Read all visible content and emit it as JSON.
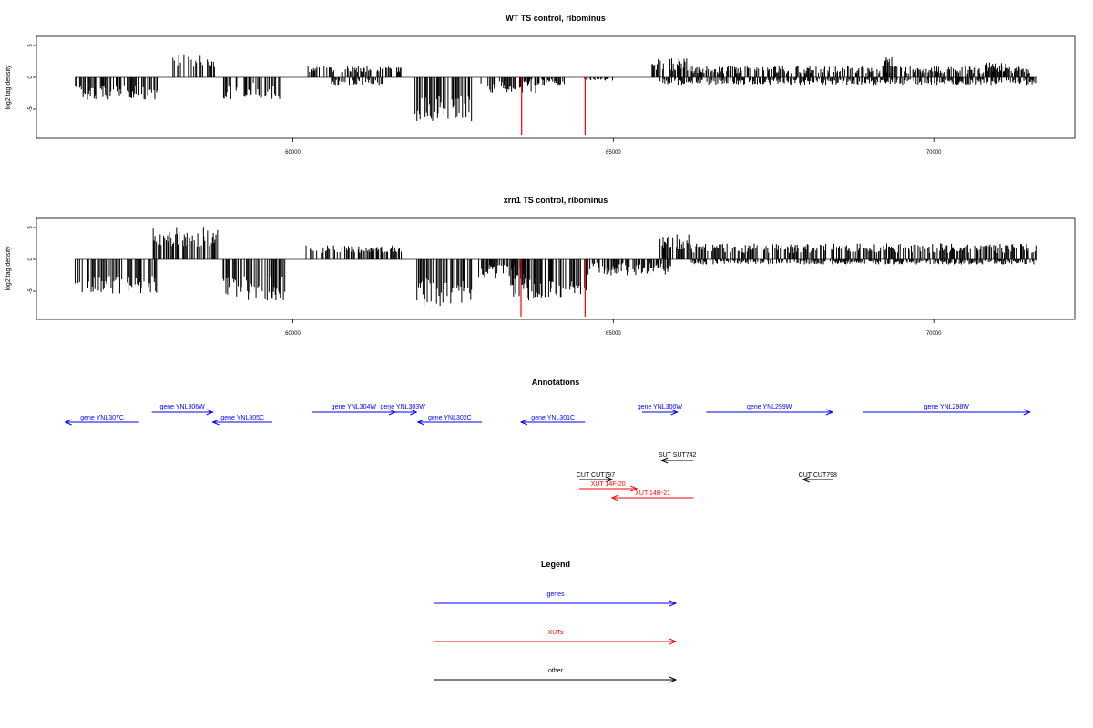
{
  "chart_data": [
    {
      "type": "bar",
      "title": "WT TS control, ribominus",
      "ylabel": "log2 tag density",
      "xlabel": "",
      "xlim": [
        56000,
        72200
      ],
      "ylim": [
        -9,
        6.5
      ],
      "yticks": [
        -5,
        0,
        5
      ],
      "xticks": [
        60000,
        65000,
        70000
      ],
      "grid": false,
      "series": [
        {
          "color": "#000000",
          "segments": [
            {
              "from": 56600,
              "to": 57900,
              "sign": -1,
              "hi": 3.5,
              "lo": 1.2
            },
            {
              "from": 58100,
              "to": 58800,
              "sign": 1,
              "hi": 3.8,
              "lo": 1.5
            },
            {
              "from": 58900,
              "to": 59800,
              "sign": -1,
              "hi": 3.5,
              "lo": 0.8
            },
            {
              "from": 60200,
              "to": 61700,
              "sign": 1,
              "hi": 1.8,
              "lo": 0.8
            },
            {
              "from": 60600,
              "to": 61400,
              "sign": -1,
              "hi": 1.2,
              "lo": 0.3
            },
            {
              "from": 61900,
              "to": 62800,
              "sign": -1,
              "hi": 7,
              "lo": 2.5
            },
            {
              "from": 62900,
              "to": 63800,
              "sign": -1,
              "hi": 2.5,
              "lo": 0.5
            },
            {
              "from": 63600,
              "to": 64300,
              "sign": -1,
              "hi": 1.2,
              "lo": 0.3
            },
            {
              "from": 64550,
              "to": 65000,
              "sign": -1,
              "hi": 0.5,
              "lo": 0.2
            },
            {
              "from": 65600,
              "to": 66200,
              "sign": 1,
              "hi": 3.0,
              "lo": 1.0
            },
            {
              "from": 66200,
              "to": 71500,
              "sign": 1,
              "hi": 1.8,
              "lo": 0.6
            },
            {
              "from": 69200,
              "to": 69400,
              "sign": 1,
              "hi": 3.5,
              "lo": 1.5
            },
            {
              "from": 70800,
              "to": 71200,
              "sign": 1,
              "hi": 2.5,
              "lo": 1.0
            },
            {
              "from": 65700,
              "to": 71600,
              "sign": -1,
              "hi": 1.2,
              "lo": 0.3
            }
          ]
        },
        {
          "color": "#ff0000",
          "bars": [
            {
              "x": 63570,
              "y": -9
            },
            {
              "x": 64560,
              "y": -9
            }
          ]
        }
      ]
    },
    {
      "type": "bar",
      "title": "xrn1 TS control, ribominus",
      "ylabel": "log2 tag density",
      "xlabel": "",
      "xlim": [
        56000,
        72200
      ],
      "ylim": [
        -9,
        6.5
      ],
      "yticks": [
        -5,
        0,
        5
      ],
      "xticks": [
        60000,
        65000,
        70000
      ],
      "grid": false,
      "series": [
        {
          "color": "#000000",
          "segments": [
            {
              "from": 56600,
              "to": 57900,
              "sign": -1,
              "hi": 5.5,
              "lo": 2.5
            },
            {
              "from": 57800,
              "to": 58850,
              "sign": 1,
              "hi": 5.0,
              "lo": 2.0
            },
            {
              "from": 58850,
              "to": 59900,
              "sign": -1,
              "hi": 6.5,
              "lo": 2.5
            },
            {
              "from": 60200,
              "to": 61700,
              "sign": 1,
              "hi": 2.2,
              "lo": 1.0
            },
            {
              "from": 61900,
              "to": 62800,
              "sign": -1,
              "hi": 7.5,
              "lo": 3.0
            },
            {
              "from": 62900,
              "to": 63700,
              "sign": -1,
              "hi": 3.0,
              "lo": 0.8
            },
            {
              "from": 63400,
              "to": 64600,
              "sign": -1,
              "hi": 6.5,
              "lo": 2.5
            },
            {
              "from": 64600,
              "to": 65900,
              "sign": -1,
              "hi": 2.5,
              "lo": 0.5
            },
            {
              "from": 65700,
              "to": 66200,
              "sign": 1,
              "hi": 4.0,
              "lo": 1.5
            },
            {
              "from": 66200,
              "to": 71600,
              "sign": 1,
              "hi": 2.5,
              "lo": 1.0
            },
            {
              "from": 66200,
              "to": 71600,
              "sign": -1,
              "hi": 0.8,
              "lo": 0.2
            }
          ]
        },
        {
          "color": "#ff0000",
          "bars": [
            {
              "x": 63560,
              "y": -9
            },
            {
              "x": 64560,
              "y": -9
            }
          ]
        }
      ]
    }
  ],
  "annotations": {
    "title": "Annotations",
    "tracks": [
      {
        "label": "gene YNL307C",
        "color": "#0000ff",
        "start": 56450,
        "end": 57600,
        "strand": "-",
        "row": 1
      },
      {
        "label": "gene YNL306W",
        "color": "#0000ff",
        "start": 57800,
        "end": 58750,
        "strand": "+",
        "row": 0
      },
      {
        "label": "gene YNL305C",
        "color": "#0000ff",
        "start": 58750,
        "end": 59680,
        "strand": "-",
        "row": 1
      },
      {
        "label": "gene YNL304W",
        "color": "#0000ff",
        "start": 60300,
        "end": 61600,
        "strand": "+",
        "row": 0
      },
      {
        "label": "gene YNL303W",
        "color": "#0000ff",
        "start": 61500,
        "end": 61930,
        "strand": "+",
        "row": 0
      },
      {
        "label": "gene YNL302C",
        "color": "#0000ff",
        "start": 61950,
        "end": 62950,
        "strand": "-",
        "row": 1
      },
      {
        "label": "gene YNL301C",
        "color": "#0000ff",
        "start": 63560,
        "end": 64560,
        "strand": "-",
        "row": 1
      },
      {
        "label": "gene YNL300W",
        "color": "#0000ff",
        "start": 65450,
        "end": 66000,
        "strand": "+",
        "row": 0
      },
      {
        "label": "gene YNL299W",
        "color": "#0000ff",
        "start": 66450,
        "end": 68420,
        "strand": "+",
        "row": 0
      },
      {
        "label": "gene YNL298W",
        "color": "#0000ff",
        "start": 68900,
        "end": 71500,
        "strand": "+",
        "row": 0
      },
      {
        "label": "SUT SUT742",
        "color": "#000000",
        "start": 65750,
        "end": 66250,
        "strand": "-",
        "row": 2
      },
      {
        "label": "CUT CUT797",
        "color": "#000000",
        "start": 64470,
        "end": 64980,
        "strand": "+",
        "row": 3
      },
      {
        "label": "CUT CUT798",
        "color": "#000000",
        "start": 67960,
        "end": 68420,
        "strand": "-",
        "row": 3
      },
      {
        "label": "XUT 14F-20",
        "color": "#ff0000",
        "start": 64470,
        "end": 65370,
        "strand": "+",
        "row": 4
      },
      {
        "label": "XUT 14R-21",
        "color": "#ff0000",
        "start": 64980,
        "end": 66250,
        "strand": "-",
        "row": 5
      }
    ]
  },
  "legend": {
    "title": "Legend",
    "items": [
      {
        "label": "genes",
        "color": "#0000ff"
      },
      {
        "label": "XUTs",
        "color": "#ff0000"
      },
      {
        "label": "other",
        "color": "#000000"
      }
    ]
  }
}
